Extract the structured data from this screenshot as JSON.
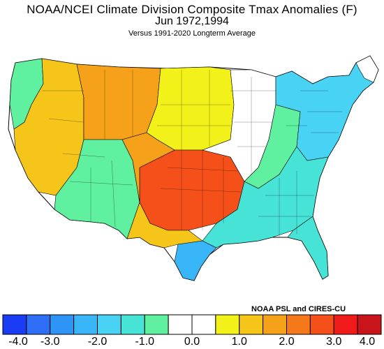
{
  "header": {
    "title": "NOAA/NCEI Climate Division Composite Tmax Anomalies (F)",
    "subtitle": "Jun  1972,1994",
    "reference": "Versus 1991-2020 Longterm Average"
  },
  "credit": "NOAA PSL and CIRES-CU",
  "legend": {
    "unit": "F",
    "colors": [
      "#1a3cf5",
      "#2f6ff7",
      "#2e95f7",
      "#38b6f7",
      "#48d3f5",
      "#47e3d6",
      "#5ff0a0",
      "#ffffff",
      "#ffffff",
      "#f2f21a",
      "#f5c51a",
      "#f5a21a",
      "#f5781a",
      "#f5501a",
      "#f01a1a",
      "#c8141a"
    ],
    "tick_labels": [
      "-4.0",
      "-3.0",
      "-2.0",
      "-1.0",
      "0.0",
      "1.0",
      "2.0",
      "3.0",
      "4.0"
    ]
  },
  "regions": [
    {
      "name": "northwest-coast",
      "color": "#5ff0a0"
    },
    {
      "name": "great-basin",
      "color": "#f5c51a"
    },
    {
      "name": "northern-rockies",
      "color": "#f5a21a"
    },
    {
      "name": "northern-plains",
      "color": "#f2f21a"
    },
    {
      "name": "southwest",
      "color": "#5ff0a0"
    },
    {
      "name": "southern-plains",
      "color": "#f5501a"
    },
    {
      "name": "gulf-coast-texas",
      "color": "#38b6f7"
    },
    {
      "name": "southeast",
      "color": "#47e3d6"
    },
    {
      "name": "northeast",
      "color": "#48d3f5"
    },
    {
      "name": "ohio-valley",
      "color": "#5ff0a0"
    },
    {
      "name": "midwest",
      "color": "#ffffff"
    },
    {
      "name": "florida",
      "color": "#47e3d6"
    }
  ]
}
